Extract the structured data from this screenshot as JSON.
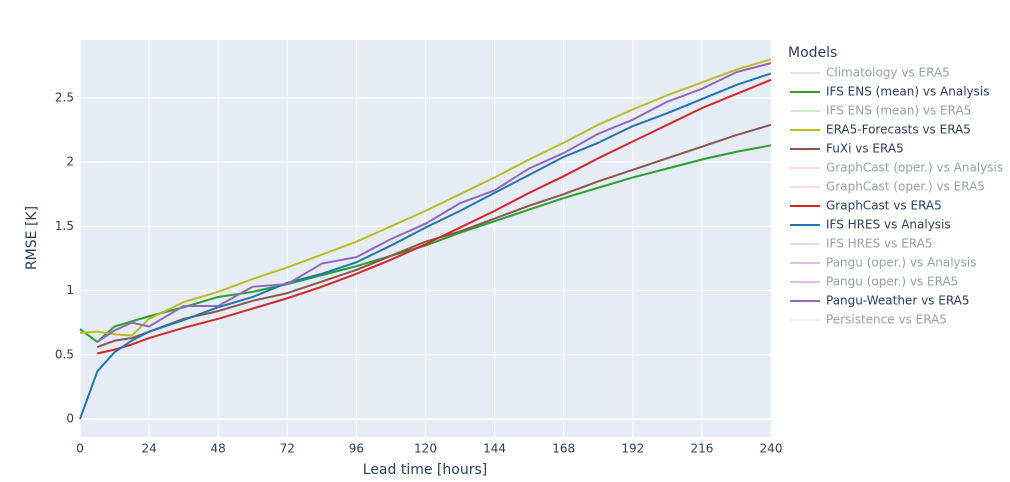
{
  "chart_data": {
    "type": "line",
    "x_label": "Lead time [hours]",
    "y_label": "RMSE [K]",
    "legend_title": "Models",
    "xlim": [
      0,
      240
    ],
    "xticks": [
      0,
      24,
      48,
      72,
      96,
      120,
      144,
      168,
      192,
      216,
      240
    ],
    "ylim": [
      -0.14,
      2.95
    ],
    "yticks": [
      0,
      0.5,
      1,
      1.5,
      2,
      2.5
    ],
    "grid": true,
    "legend": "right",
    "x": [
      0,
      6,
      12,
      18,
      24,
      36,
      48,
      60,
      72,
      84,
      96,
      108,
      120,
      132,
      144,
      156,
      168,
      180,
      192,
      204,
      216,
      228,
      240
    ],
    "series": [
      {
        "name": "Climatology vs ERA5",
        "color": "#c8c8c8",
        "visible": false
      },
      {
        "name": "IFS ENS (mean) vs Analysis",
        "color": "#2ca02c",
        "visible": true,
        "values": [
          0.7,
          0.6,
          0.72,
          0.76,
          0.8,
          0.87,
          0.95,
          0.99,
          1.05,
          1.12,
          1.19,
          1.27,
          1.35,
          1.45,
          1.54,
          1.63,
          1.72,
          1.8,
          1.88,
          1.95,
          2.02,
          2.08,
          2.13
        ]
      },
      {
        "name": "IFS ENS (mean) vs ERA5",
        "color": "#98df8a",
        "visible": false
      },
      {
        "name": "ERA5-Forecasts vs ERA5",
        "color": "#bcbd22",
        "visible": true,
        "values": [
          0.67,
          0.68,
          0.66,
          0.65,
          0.78,
          0.91,
          0.99,
          1.09,
          1.18,
          1.28,
          1.38,
          1.5,
          1.62,
          1.75,
          1.88,
          2.02,
          2.15,
          2.29,
          2.41,
          2.52,
          2.62,
          2.72,
          2.8
        ]
      },
      {
        "name": "FuXi vs ERA5",
        "color": "#8c564b",
        "visible": true,
        "values": [
          null,
          0.56,
          0.61,
          0.63,
          0.68,
          0.78,
          0.84,
          0.92,
          0.98,
          1.07,
          1.16,
          1.27,
          1.38,
          1.46,
          1.56,
          1.66,
          1.75,
          1.85,
          1.94,
          2.03,
          2.12,
          2.21,
          2.29
        ]
      },
      {
        "name": "GraphCast (oper.) vs Analysis",
        "color": "#f7b6d2",
        "visible": false
      },
      {
        "name": "GraphCast (oper.) vs ERA5",
        "color": "#f7b6d2",
        "visible": false
      },
      {
        "name": "GraphCast vs ERA5",
        "color": "#d62728",
        "visible": true,
        "values": [
          null,
          0.51,
          0.54,
          0.58,
          0.63,
          0.71,
          0.78,
          0.86,
          0.94,
          1.03,
          1.13,
          1.24,
          1.36,
          1.49,
          1.62,
          1.76,
          1.89,
          2.03,
          2.16,
          2.29,
          2.42,
          2.53,
          2.64
        ]
      },
      {
        "name": "IFS HRES vs Analysis",
        "color": "#1f77b4",
        "visible": true,
        "values": [
          0,
          0.37,
          0.52,
          0.61,
          0.68,
          0.77,
          0.87,
          0.95,
          1.06,
          1.13,
          1.22,
          1.35,
          1.49,
          1.62,
          1.76,
          1.9,
          2.04,
          2.15,
          2.28,
          2.38,
          2.49,
          2.6,
          2.69
        ]
      },
      {
        "name": "IFS HRES vs ERA5",
        "color": "#aec7e8",
        "visible": false
      },
      {
        "name": "Pangu (oper.) vs Analysis",
        "color": "#c77dcf",
        "visible": false
      },
      {
        "name": "Pangu (oper.) vs ERA5",
        "color": "#c77dcf",
        "visible": false
      },
      {
        "name": "Pangu-Weather vs ERA5",
        "color": "#9467bd",
        "visible": true,
        "values": [
          null,
          0.6,
          0.69,
          0.75,
          0.72,
          0.88,
          0.88,
          1.03,
          1.05,
          1.21,
          1.26,
          1.4,
          1.52,
          1.68,
          1.78,
          1.95,
          2.07,
          2.22,
          2.33,
          2.47,
          2.57,
          2.7,
          2.77
        ]
      },
      {
        "name": "Persistence vs ERA5",
        "color": "#e0e0e0",
        "visible": false
      }
    ]
  }
}
